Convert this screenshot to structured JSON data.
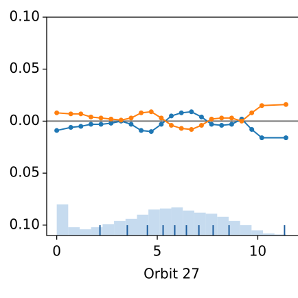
{
  "chart_data": {
    "type": "line",
    "xlabel": "Orbit 27",
    "xlim": [
      -0.5,
      12
    ],
    "ylim": [
      -0.11,
      0.1
    ],
    "xticks": [
      0,
      5,
      10
    ],
    "yticks": [
      {
        "value": 0.1,
        "label": "0.10"
      },
      {
        "value": 0.05,
        "label": "0.05"
      },
      {
        "value": 0,
        "label": "0.00"
      },
      {
        "value": -0.05,
        "label": "0.05"
      },
      {
        "value": -0.1,
        "label": "0.10"
      }
    ],
    "x": [
      0,
      0.7,
      1.2,
      1.7,
      2.2,
      2.7,
      3.2,
      3.7,
      4.2,
      4.7,
      5.2,
      5.7,
      6.2,
      6.7,
      7.2,
      7.7,
      8.2,
      8.7,
      9.2,
      9.7,
      10.2,
      11.4
    ],
    "series": [
      {
        "color": "#1f77b4",
        "values": [
          -0.009,
          -0.006,
          -0.005,
          -0.003,
          -0.003,
          -0.002,
          0.0,
          -0.003,
          -0.009,
          -0.01,
          -0.003,
          0.005,
          0.008,
          0.009,
          0.004,
          -0.003,
          -0.004,
          -0.003,
          0.002,
          -0.008,
          -0.016,
          -0.016
        ]
      },
      {
        "color": "#ff7f0e",
        "values": [
          0.008,
          0.007,
          0.007,
          0.004,
          0.003,
          0.002,
          0.001,
          0.003,
          0.008,
          0.009,
          0.003,
          -0.004,
          -0.007,
          -0.008,
          -0.004,
          0.002,
          0.003,
          0.003,
          0.0,
          0.008,
          0.015,
          0.016
        ]
      }
    ],
    "reference_line": {
      "value": 0,
      "color": "#777777"
    },
    "histogram": {
      "color": "#c6dbef",
      "bins": [
        0,
        0.57,
        1.14,
        1.71,
        2.28,
        2.85,
        3.42,
        3.99,
        4.56,
        5.13,
        5.7,
        6.27,
        6.84,
        7.41,
        7.98,
        8.55,
        9.12,
        9.69,
        10.26,
        10.83,
        11.4
      ],
      "values": [
        -0.08,
        -0.102,
        -0.104,
        -0.102,
        -0.099,
        -0.096,
        -0.094,
        -0.09,
        -0.085,
        -0.084,
        -0.083,
        -0.086,
        -0.088,
        -0.089,
        -0.092,
        -0.096,
        -0.1,
        -0.105,
        -0.108,
        -0.109
      ]
    },
    "rug": {
      "color": "#1f5f9f",
      "x": [
        2.15,
        3.51,
        4.51,
        5.29,
        5.87,
        6.45,
        7.07,
        7.78,
        8.57,
        11.33
      ]
    }
  }
}
